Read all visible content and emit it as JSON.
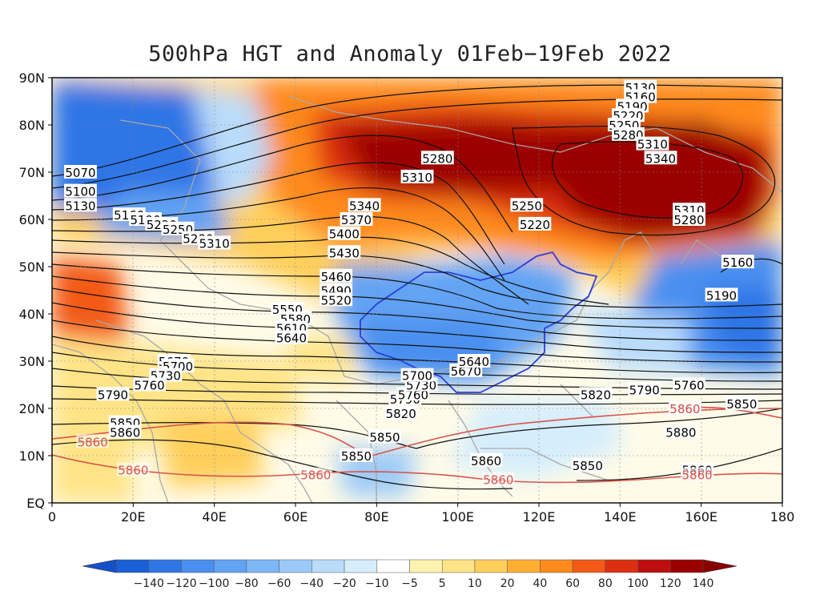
{
  "title": "500hPa HGT and Anomaly 01Feb−19Feb 2022",
  "map": {
    "lat_ticks": [
      "EQ",
      "10N",
      "20N",
      "30N",
      "40N",
      "50N",
      "60N",
      "70N",
      "80N",
      "90N"
    ],
    "lon_ticks": [
      "0",
      "20E",
      "40E",
      "60E",
      "80E",
      "100E",
      "120E",
      "140E",
      "160E",
      "180"
    ],
    "contour_labels": [
      {
        "text": "5070",
        "lon": 7,
        "lat": 70
      },
      {
        "text": "5100",
        "lon": 7,
        "lat": 66
      },
      {
        "text": "5130",
        "lon": 7,
        "lat": 63
      },
      {
        "text": "5160",
        "lon": 19,
        "lat": 61
      },
      {
        "text": "5190",
        "lon": 23,
        "lat": 60
      },
      {
        "text": "5220",
        "lon": 27,
        "lat": 59
      },
      {
        "text": "5250",
        "lon": 31,
        "lat": 58
      },
      {
        "text": "5280",
        "lon": 36,
        "lat": 56
      },
      {
        "text": "5310",
        "lon": 40,
        "lat": 55
      },
      {
        "text": "5280",
        "lon": 95,
        "lat": 73
      },
      {
        "text": "5310",
        "lon": 90,
        "lat": 69
      },
      {
        "text": "5340",
        "lon": 77,
        "lat": 63
      },
      {
        "text": "5370",
        "lon": 75,
        "lat": 60
      },
      {
        "text": "5400",
        "lon": 72,
        "lat": 57
      },
      {
        "text": "5430",
        "lon": 72,
        "lat": 53
      },
      {
        "text": "5460",
        "lon": 70,
        "lat": 48
      },
      {
        "text": "5490",
        "lon": 70,
        "lat": 45
      },
      {
        "text": "5520",
        "lon": 70,
        "lat": 43
      },
      {
        "text": "5550",
        "lon": 58,
        "lat": 41
      },
      {
        "text": "5580",
        "lon": 60,
        "lat": 39
      },
      {
        "text": "5610",
        "lon": 59,
        "lat": 37
      },
      {
        "text": "5640",
        "lon": 59,
        "lat": 35
      },
      {
        "text": "5670",
        "lon": 30,
        "lat": 30
      },
      {
        "text": "5700",
        "lon": 31,
        "lat": 29
      },
      {
        "text": "5730",
        "lon": 28,
        "lat": 27
      },
      {
        "text": "5760",
        "lon": 24,
        "lat": 25
      },
      {
        "text": "5790",
        "lon": 15,
        "lat": 23
      },
      {
        "text": "5850",
        "lon": 18,
        "lat": 17
      },
      {
        "text": "5860",
        "lon": 18,
        "lat": 15
      },
      {
        "text": "5850",
        "lon": 82,
        "lat": 14
      },
      {
        "text": "5850",
        "lon": 75,
        "lat": 10
      },
      {
        "text": "5820",
        "lon": 86,
        "lat": 19
      },
      {
        "text": "5790",
        "lon": 87,
        "lat": 22
      },
      {
        "text": "5760",
        "lon": 89,
        "lat": 23
      },
      {
        "text": "5730",
        "lon": 91,
        "lat": 25
      },
      {
        "text": "5700",
        "lon": 90,
        "lat": 27
      },
      {
        "text": "5670",
        "lon": 102,
        "lat": 28
      },
      {
        "text": "5640",
        "lon": 104,
        "lat": 30
      },
      {
        "text": "5250",
        "lon": 117,
        "lat": 63
      },
      {
        "text": "5220",
        "lon": 119,
        "lat": 59
      },
      {
        "text": "5130",
        "lon": 145,
        "lat": 88
      },
      {
        "text": "5160",
        "lon": 145,
        "lat": 86
      },
      {
        "text": "5190",
        "lon": 143,
        "lat": 84
      },
      {
        "text": "5220",
        "lon": 142,
        "lat": 82
      },
      {
        "text": "5250",
        "lon": 141,
        "lat": 80
      },
      {
        "text": "5280",
        "lon": 142,
        "lat": 78
      },
      {
        "text": "5310",
        "lon": 148,
        "lat": 76
      },
      {
        "text": "5340",
        "lon": 150,
        "lat": 73
      },
      {
        "text": "5310",
        "lon": 157,
        "lat": 62
      },
      {
        "text": "5280",
        "lon": 157,
        "lat": 60
      },
      {
        "text": "5160",
        "lon": 169,
        "lat": 51
      },
      {
        "text": "5190",
        "lon": 165,
        "lat": 44
      },
      {
        "text": "5820",
        "lon": 134,
        "lat": 23
      },
      {
        "text": "5790",
        "lon": 146,
        "lat": 24
      },
      {
        "text": "5760",
        "lon": 157,
        "lat": 25
      },
      {
        "text": "5860",
        "lon": 156,
        "lat": 20
      },
      {
        "text": "5850",
        "lon": 170,
        "lat": 21
      },
      {
        "text": "5880",
        "lon": 155,
        "lat": 15
      },
      {
        "text": "5860",
        "lon": 107,
        "lat": 9
      },
      {
        "text": "5850",
        "lon": 132,
        "lat": 8
      },
      {
        "text": "5860",
        "lon": 159,
        "lat": 7
      }
    ],
    "red_labels": [
      {
        "text": "5860",
        "lon": 10,
        "lat": 13
      },
      {
        "text": "5860",
        "lon": 20,
        "lat": 7
      },
      {
        "text": "5860",
        "lon": 65,
        "lat": 6
      },
      {
        "text": "5860",
        "lon": 110,
        "lat": 5
      },
      {
        "text": "5860",
        "lon": 156,
        "lat": 20
      },
      {
        "text": "5860",
        "lon": 159,
        "lat": 6
      }
    ]
  },
  "colorbar": {
    "labels": [
      "−140",
      "−120",
      "−100",
      "−80",
      "−60",
      "−40",
      "−20",
      "−10",
      "−5",
      "5",
      "10",
      "20",
      "40",
      "60",
      "80",
      "100",
      "120",
      "140"
    ],
    "colors": [
      "#1a5fd6",
      "#2e75e6",
      "#4a8ff0",
      "#62a3f4",
      "#7db7f7",
      "#9ccaf8",
      "#b9dcfa",
      "#d6eefc",
      "#ffffff",
      "#fff3b0",
      "#ffe487",
      "#ffcf5c",
      "#ffae34",
      "#ff8a1e",
      "#f35a17",
      "#dc2f10",
      "#bd0f0f",
      "#9b0000"
    ]
  }
}
